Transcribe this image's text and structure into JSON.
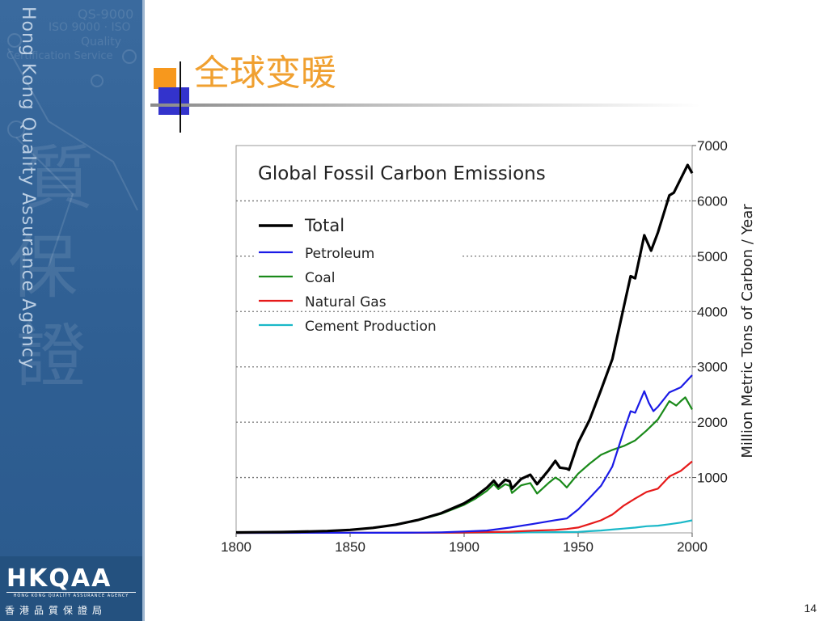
{
  "sidebar": {
    "vertical_text": "Hong Kong Quality Assurance Agency",
    "brand_logo": "HKQAA",
    "brand_small": "HONG KONG QUALITY ASSURANCE AGENCY",
    "brand_chinese": "香港品質保證局",
    "watermark_lines": [
      "QS-9000",
      "ISO 9000 · ISO",
      "Quality",
      "Certification Service"
    ],
    "colors": {
      "panel": "#2f5f93",
      "text": "#dce8f4"
    }
  },
  "slide": {
    "title": "全球变暖",
    "page_number": "14",
    "title_color": "#f0a030"
  },
  "chart_data": {
    "type": "line",
    "title": "Global Fossil Carbon Emissions",
    "xlabel": "",
    "ylabel": "Million Metric Tons of Carbon / Year",
    "xlim": [
      1800,
      2000
    ],
    "ylim": [
      0,
      7000
    ],
    "x_ticks": [
      1800,
      1850,
      1900,
      1950,
      2000
    ],
    "y_ticks": [
      1000,
      2000,
      3000,
      4000,
      5000,
      6000,
      7000
    ],
    "grid": "horizontal dotted",
    "legend_position": "top-left",
    "series": [
      {
        "name": "Total",
        "color": "#000000",
        "points": [
          [
            1800,
            8
          ],
          [
            1810,
            11
          ],
          [
            1820,
            14
          ],
          [
            1830,
            24
          ],
          [
            1840,
            33
          ],
          [
            1850,
            54
          ],
          [
            1860,
            91
          ],
          [
            1870,
            147
          ],
          [
            1880,
            236
          ],
          [
            1890,
            356
          ],
          [
            1900,
            534
          ],
          [
            1905,
            660
          ],
          [
            1910,
            819
          ],
          [
            1913,
            943
          ],
          [
            1915,
            840
          ],
          [
            1918,
            960
          ],
          [
            1920,
            932
          ],
          [
            1921,
            800
          ],
          [
            1925,
            975
          ],
          [
            1929,
            1050
          ],
          [
            1932,
            880
          ],
          [
            1937,
            1130
          ],
          [
            1940,
            1300
          ],
          [
            1942,
            1180
          ],
          [
            1945,
            1160
          ],
          [
            1946,
            1140
          ],
          [
            1950,
            1630
          ],
          [
            1955,
            2040
          ],
          [
            1960,
            2580
          ],
          [
            1965,
            3140
          ],
          [
            1970,
            4080
          ],
          [
            1973,
            4640
          ],
          [
            1975,
            4600
          ],
          [
            1979,
            5380
          ],
          [
            1982,
            5100
          ],
          [
            1985,
            5430
          ],
          [
            1990,
            6100
          ],
          [
            1992,
            6150
          ],
          [
            1995,
            6400
          ],
          [
            1998,
            6650
          ],
          [
            2000,
            6500
          ]
        ]
      },
      {
        "name": "Petroleum",
        "color": "#1a1ae6",
        "points": [
          [
            1800,
            0
          ],
          [
            1870,
            1
          ],
          [
            1880,
            5
          ],
          [
            1890,
            10
          ],
          [
            1900,
            25
          ],
          [
            1910,
            43
          ],
          [
            1920,
            95
          ],
          [
            1930,
            160
          ],
          [
            1940,
            230
          ],
          [
            1945,
            260
          ],
          [
            1950,
            423
          ],
          [
            1955,
            630
          ],
          [
            1960,
            849
          ],
          [
            1965,
            1200
          ],
          [
            1970,
            1838
          ],
          [
            1973,
            2200
          ],
          [
            1975,
            2170
          ],
          [
            1979,
            2560
          ],
          [
            1981,
            2350
          ],
          [
            1983,
            2200
          ],
          [
            1985,
            2280
          ],
          [
            1990,
            2540
          ],
          [
            1995,
            2630
          ],
          [
            2000,
            2850
          ]
        ]
      },
      {
        "name": "Coal",
        "color": "#1a8a1a",
        "points": [
          [
            1800,
            8
          ],
          [
            1810,
            11
          ],
          [
            1820,
            14
          ],
          [
            1830,
            24
          ],
          [
            1840,
            33
          ],
          [
            1850,
            54
          ],
          [
            1860,
            91
          ],
          [
            1870,
            146
          ],
          [
            1880,
            230
          ],
          [
            1890,
            345
          ],
          [
            1900,
            507
          ],
          [
            1905,
            620
          ],
          [
            1910,
            760
          ],
          [
            1913,
            880
          ],
          [
            1915,
            790
          ],
          [
            1918,
            880
          ],
          [
            1920,
            850
          ],
          [
            1921,
            720
          ],
          [
            1925,
            860
          ],
          [
            1929,
            900
          ],
          [
            1932,
            710
          ],
          [
            1937,
            900
          ],
          [
            1940,
            1000
          ],
          [
            1942,
            950
          ],
          [
            1945,
            820
          ],
          [
            1946,
            870
          ],
          [
            1950,
            1070
          ],
          [
            1955,
            1250
          ],
          [
            1960,
            1410
          ],
          [
            1965,
            1500
          ],
          [
            1970,
            1570
          ],
          [
            1975,
            1670
          ],
          [
            1980,
            1850
          ],
          [
            1985,
            2050
          ],
          [
            1990,
            2380
          ],
          [
            1993,
            2300
          ],
          [
            1995,
            2380
          ],
          [
            1997,
            2450
          ],
          [
            2000,
            2230
          ]
        ]
      },
      {
        "name": "Natural Gas",
        "color": "#e61a1a",
        "points": [
          [
            1800,
            0
          ],
          [
            1880,
            1
          ],
          [
            1900,
            6
          ],
          [
            1920,
            21
          ],
          [
            1930,
            40
          ],
          [
            1940,
            52
          ],
          [
            1945,
            70
          ],
          [
            1950,
            97
          ],
          [
            1955,
            160
          ],
          [
            1960,
            227
          ],
          [
            1965,
            330
          ],
          [
            1970,
            493
          ],
          [
            1975,
            620
          ],
          [
            1980,
            739
          ],
          [
            1985,
            800
          ],
          [
            1990,
            1019
          ],
          [
            1995,
            1120
          ],
          [
            2000,
            1292
          ]
        ]
      },
      {
        "name": "Cement Production",
        "color": "#1ab8c8",
        "points": [
          [
            1800,
            0
          ],
          [
            1920,
            3
          ],
          [
            1930,
            10
          ],
          [
            1940,
            13
          ],
          [
            1950,
            18
          ],
          [
            1955,
            30
          ],
          [
            1960,
            43
          ],
          [
            1965,
            60
          ],
          [
            1970,
            78
          ],
          [
            1975,
            95
          ],
          [
            1980,
            120
          ],
          [
            1985,
            130
          ],
          [
            1990,
            157
          ],
          [
            1995,
            185
          ],
          [
            2000,
            226
          ]
        ]
      }
    ]
  }
}
